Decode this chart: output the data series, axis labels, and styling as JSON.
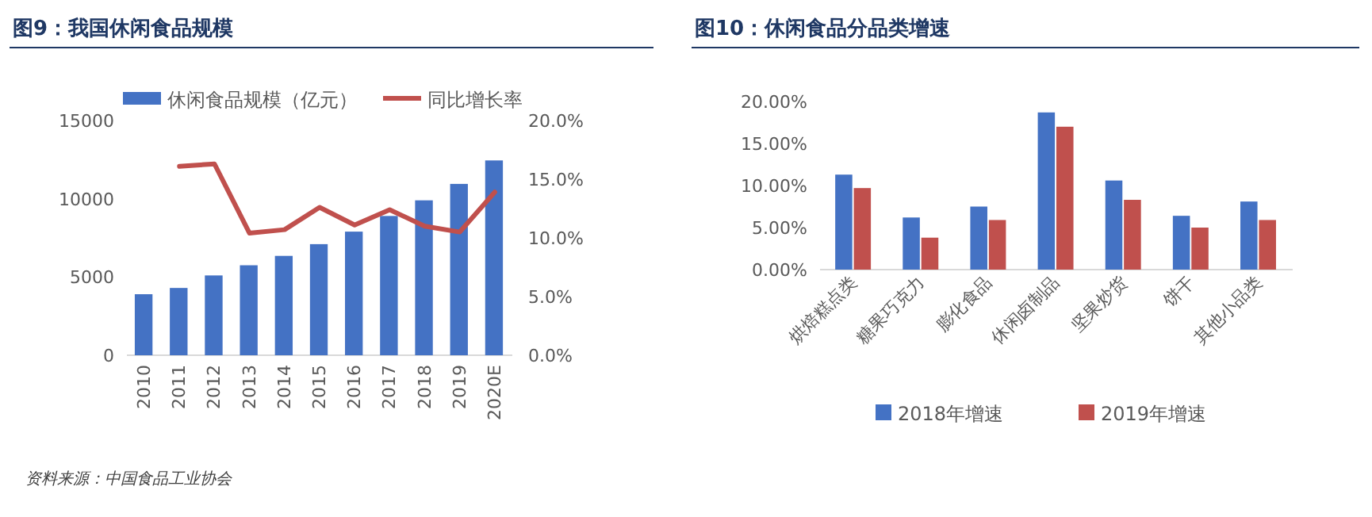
{
  "chart_data": [
    {
      "type": "bar",
      "title": "图9：我国休闲食品规模",
      "categories": [
        "2010",
        "2011",
        "2012",
        "2013",
        "2014",
        "2015",
        "2016",
        "2017",
        "2018",
        "2019",
        "2020E"
      ],
      "series": [
        {
          "name": "休闲食品规模（亿元）",
          "color": "#4472c4",
          "values": [
            3900,
            4300,
            5100,
            5750,
            6350,
            7100,
            7900,
            8900,
            9900,
            10950,
            12450
          ]
        },
        {
          "name": "同比增长率",
          "type": "line",
          "axis": "y2",
          "color": "#c0504d",
          "values": [
            null,
            16.1,
            16.3,
            10.4,
            10.7,
            12.6,
            11.1,
            12.4,
            11.0,
            10.5,
            13.9
          ]
        }
      ],
      "ylim": [
        0,
        15000
      ],
      "yticks": [
        0,
        5000,
        10000,
        15000
      ],
      "y2lim": [
        0,
        20
      ],
      "y2ticks": [
        {
          "value": 0,
          "label": "0.0%"
        },
        {
          "value": 5,
          "label": "5.0%"
        },
        {
          "value": 10,
          "label": "10.0%"
        },
        {
          "value": 15,
          "label": "15.0%"
        },
        {
          "value": 20,
          "label": "20.0%"
        }
      ],
      "legend": "top",
      "annotations": [
        "资料来源：中国食品工业协会"
      ]
    },
    {
      "type": "bar",
      "title": "图10：休闲食品分品类增速",
      "categories": [
        "烘焙糕点类",
        "糖果巧克力",
        "膨化食品",
        "休闲卤制品",
        "坚果炒货",
        "饼干",
        "其他小品类"
      ],
      "series": [
        {
          "name": "2018年增速",
          "color": "#4472c4",
          "values": [
            11.3,
            6.2,
            7.5,
            18.7,
            10.6,
            6.4,
            8.1
          ]
        },
        {
          "name": "2019年增速",
          "color": "#c0504d",
          "values": [
            9.7,
            3.8,
            5.9,
            17.0,
            8.3,
            5.0,
            5.9
          ]
        }
      ],
      "ylim": [
        0,
        20
      ],
      "yticks": [
        {
          "value": 0,
          "label": "0.00%"
        },
        {
          "value": 5,
          "label": "5.00%"
        },
        {
          "value": 10,
          "label": "10.00%"
        },
        {
          "value": 15,
          "label": "15.00%"
        },
        {
          "value": 20,
          "label": "20.00%"
        }
      ],
      "legend": "bottom"
    }
  ]
}
